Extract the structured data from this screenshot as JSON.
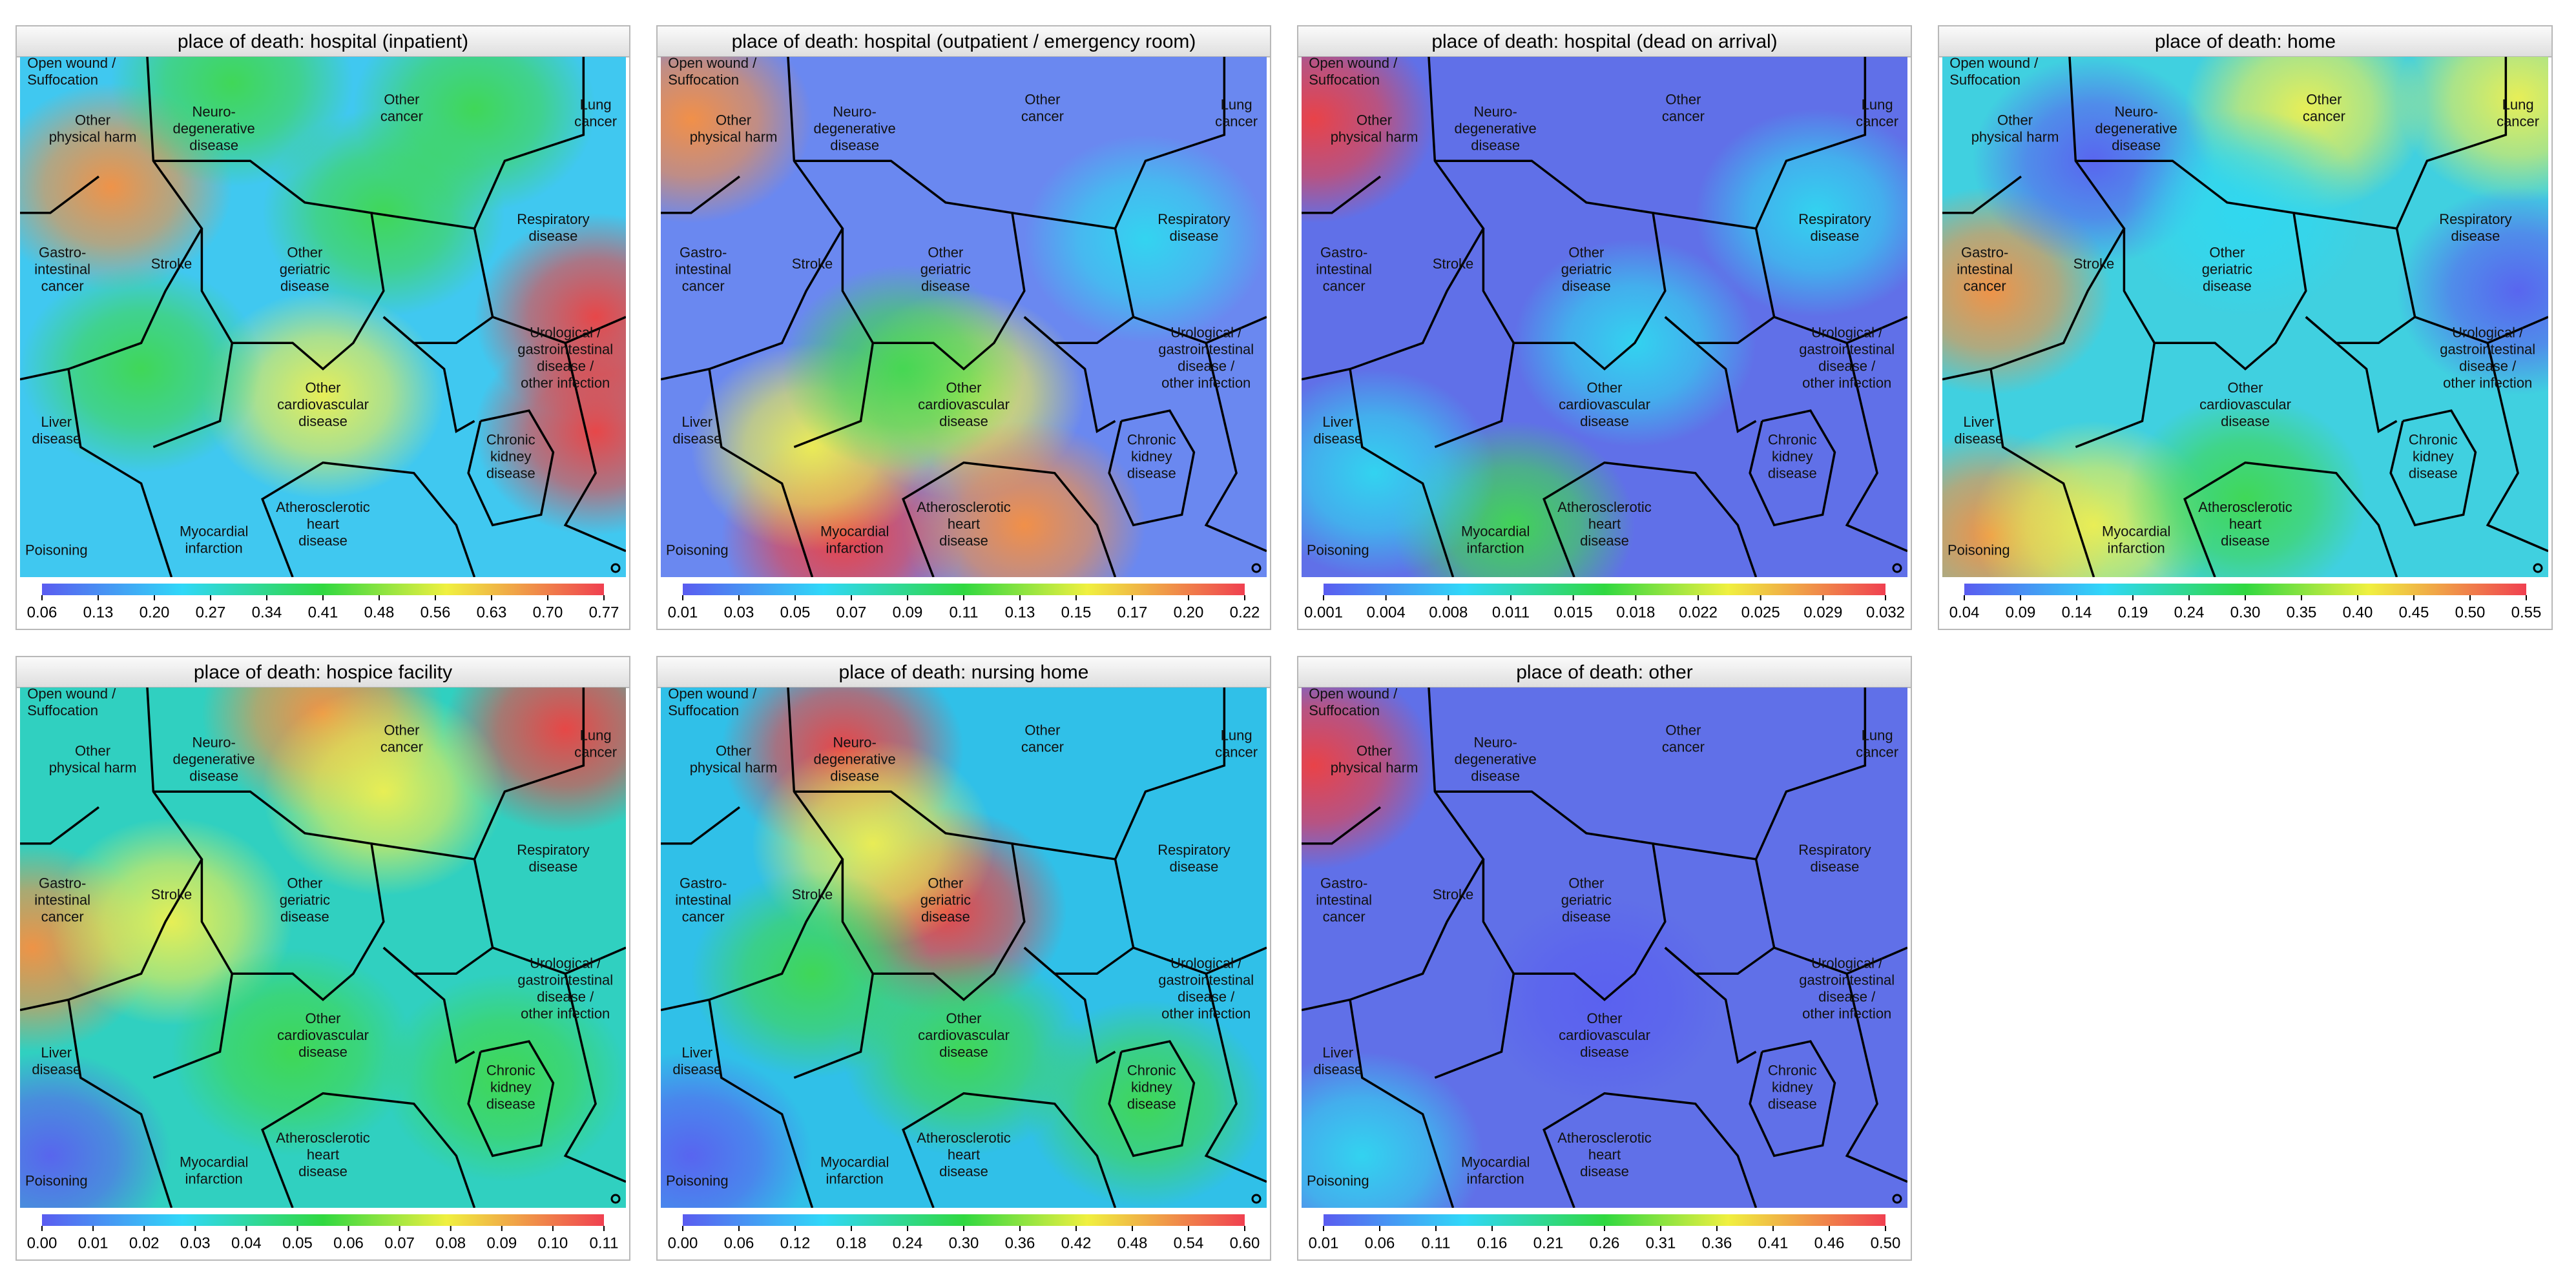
{
  "region_labels": [
    [
      "Open wound /",
      "Suffocation"
    ],
    [
      "Other",
      "physical harm"
    ],
    [
      "Neuro-",
      "degenerative",
      "disease"
    ],
    [
      "Other",
      "cancer"
    ],
    [
      "Lung",
      "cancer"
    ],
    [
      "Gastro-",
      "intestinal",
      "cancer"
    ],
    [
      "Stroke"
    ],
    [
      "Other",
      "geriatric",
      "disease"
    ],
    [
      "Respiratory",
      "disease"
    ],
    [
      "Urological /",
      "gastrointestinal",
      "disease /",
      "other infection"
    ],
    [
      "Liver",
      "disease"
    ],
    [
      "Other",
      "cardiovascular",
      "disease"
    ],
    [
      "Chronic",
      "kidney",
      "disease"
    ],
    [
      "Poisoning"
    ],
    [
      "Myocardial",
      "infarction"
    ],
    [
      "Atherosclerotic",
      "heart",
      "disease"
    ]
  ],
  "panels": [
    {
      "title": "place of death: hospital (inpatient)",
      "colorbar_ticks": [
        "0.06",
        "0.13",
        "0.20",
        "0.27",
        "0.34",
        "0.41",
        "0.48",
        "0.56",
        "0.63",
        "0.70",
        "0.77"
      ]
    },
    {
      "title": "place of death: hospital (outpatient / emergency room)",
      "colorbar_ticks": [
        "0.01",
        "0.03",
        "0.05",
        "0.07",
        "0.09",
        "0.11",
        "0.13",
        "0.15",
        "0.17",
        "0.20",
        "0.22"
      ]
    },
    {
      "title": "place of death: hospital (dead on arrival)",
      "colorbar_ticks": [
        "0.001",
        "0.004",
        "0.008",
        "0.011",
        "0.015",
        "0.018",
        "0.022",
        "0.025",
        "0.029",
        "0.032"
      ]
    },
    {
      "title": "place of death: home",
      "colorbar_ticks": [
        "0.04",
        "0.09",
        "0.14",
        "0.19",
        "0.24",
        "0.30",
        "0.35",
        "0.40",
        "0.45",
        "0.50",
        "0.55"
      ]
    },
    {
      "title": "place of death: hospice facility",
      "colorbar_ticks": [
        "0.00",
        "0.01",
        "0.02",
        "0.03",
        "0.04",
        "0.05",
        "0.06",
        "0.07",
        "0.08",
        "0.09",
        "0.10",
        "0.11"
      ]
    },
    {
      "title": "place of death: nursing home",
      "colorbar_ticks": [
        "0.00",
        "0.06",
        "0.12",
        "0.18",
        "0.24",
        "0.30",
        "0.36",
        "0.42",
        "0.48",
        "0.54",
        "0.60"
      ]
    },
    {
      "title": "place of death: other",
      "colorbar_ticks": [
        "0.01",
        "0.06",
        "0.11",
        "0.16",
        "0.21",
        "0.26",
        "0.31",
        "0.36",
        "0.41",
        "0.46",
        "0.50"
      ]
    }
  ]
}
